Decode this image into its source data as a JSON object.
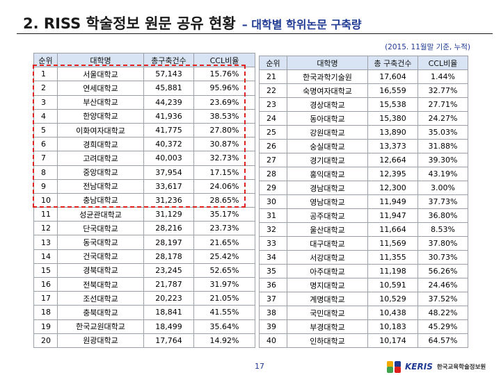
{
  "title": {
    "main": "2. RISS 학술정보 원문 공유 현황",
    "sub": "– 대학별 학위논문 구축량"
  },
  "note": "(2015. 11월말 기준, 누적)",
  "left_table": {
    "headers": [
      "순위",
      "대학명",
      "총구축건수",
      "CCL비율"
    ],
    "rows": [
      [
        "1",
        "서울대학교",
        "57,143",
        "15.76%"
      ],
      [
        "2",
        "연세대학교",
        "45,881",
        "95.96%"
      ],
      [
        "3",
        "부산대학교",
        "44,239",
        "23.69%"
      ],
      [
        "4",
        "한양대학교",
        "41,936",
        "38.53%"
      ],
      [
        "5",
        "이화여자대학교",
        "41,775",
        "27.80%"
      ],
      [
        "6",
        "경희대학교",
        "40,372",
        "30.87%"
      ],
      [
        "7",
        "고려대학교",
        "40,003",
        "32.73%"
      ],
      [
        "8",
        "중앙대학교",
        "37,954",
        "17.15%"
      ],
      [
        "9",
        "전남대학교",
        "33,617",
        "24.06%"
      ],
      [
        "10",
        "충남대학교",
        "31,236",
        "28.65%"
      ],
      [
        "11",
        "성균관대학교",
        "31,129",
        "35.17%"
      ],
      [
        "12",
        "단국대학교",
        "28,216",
        "23.73%"
      ],
      [
        "13",
        "동국대학교",
        "28,197",
        "21.65%"
      ],
      [
        "14",
        "건국대학교",
        "28,178",
        "25.42%"
      ],
      [
        "15",
        "경북대학교",
        "23,245",
        "52.65%"
      ],
      [
        "16",
        "전북대학교",
        "21,787",
        "31.97%"
      ],
      [
        "17",
        "조선대학교",
        "20,223",
        "21.05%"
      ],
      [
        "18",
        "충북대학교",
        "18,841",
        "41.55%"
      ],
      [
        "19",
        "한국교원대학교",
        "18,499",
        "35.64%"
      ],
      [
        "20",
        "원광대학교",
        "17,764",
        "14.92%"
      ]
    ]
  },
  "right_table": {
    "headers": [
      "순위",
      "대학명",
      "총 구축건수",
      "CCL비율"
    ],
    "rows": [
      [
        "21",
        "한국과학기술원",
        "17,604",
        "1.44%"
      ],
      [
        "22",
        "숙명여자대학교",
        "16,559",
        "32.77%"
      ],
      [
        "23",
        "경상대학교",
        "15,538",
        "27.71%"
      ],
      [
        "24",
        "동아대학교",
        "15,380",
        "24.27%"
      ],
      [
        "25",
        "강원대학교",
        "13,890",
        "35.03%"
      ],
      [
        "26",
        "숭실대학교",
        "13,373",
        "31.88%"
      ],
      [
        "27",
        "경기대학교",
        "12,664",
        "39.30%"
      ],
      [
        "28",
        "홍익대학교",
        "12,395",
        "43.19%"
      ],
      [
        "29",
        "경남대학교",
        "12,300",
        "3.00%"
      ],
      [
        "30",
        "영남대학교",
        "11,949",
        "37.73%"
      ],
      [
        "31",
        "공주대학교",
        "11,947",
        "36.80%"
      ],
      [
        "32",
        "울산대학교",
        "11,664",
        "8.53%"
      ],
      [
        "33",
        "대구대학교",
        "11,569",
        "37.80%"
      ],
      [
        "34",
        "서강대학교",
        "11,355",
        "30.73%"
      ],
      [
        "35",
        "아주대학교",
        "11,198",
        "56.26%"
      ],
      [
        "36",
        "명지대학교",
        "10,591",
        "24.46%"
      ],
      [
        "37",
        "계명대학교",
        "10,529",
        "37.52%"
      ],
      [
        "38",
        "국민대학교",
        "10,438",
        "48.22%"
      ],
      [
        "39",
        "부경대학교",
        "10,183",
        "45.29%"
      ],
      [
        "40",
        "인하대학교",
        "10,174",
        "64.57%"
      ]
    ]
  },
  "page_number": "17",
  "footer": {
    "logo_text": "KERIS",
    "org_name": "한국교육학술정보원"
  },
  "colors": {
    "header_fill": "#d8e4f3",
    "highlight_border": "#e0201c",
    "accent_blue": "#1f3a93"
  }
}
